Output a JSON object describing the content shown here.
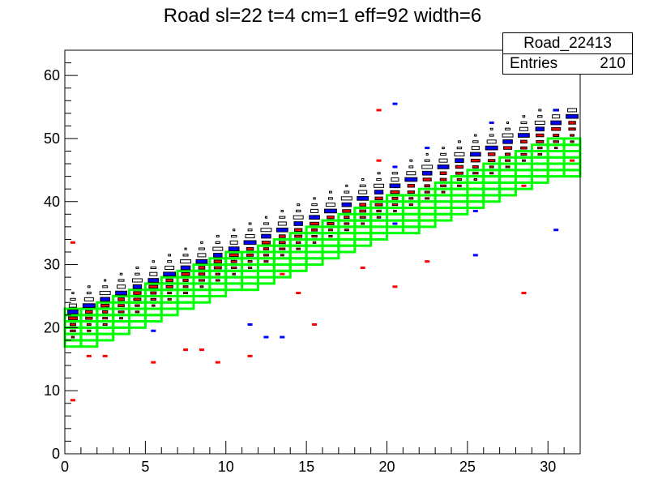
{
  "chart_data": {
    "type": "heatmap",
    "title": "Road sl=22 t=4 cm=1 eff=92 width=6",
    "xlabel": "",
    "ylabel": "",
    "xlim": [
      0,
      32
    ],
    "ylim": [
      0,
      64
    ],
    "x_ticks": [
      "0",
      "5",
      "10",
      "15",
      "20",
      "25",
      "30"
    ],
    "y_ticks": [
      "0",
      "10",
      "20",
      "30",
      "40",
      "50",
      "60"
    ],
    "stats_box": {
      "name": "Road_22413",
      "entries_label": "Entries",
      "entries_value": "210"
    },
    "road": {
      "x_bins": 32,
      "lower_edge_start": 17,
      "slope_per_bin": 0.9,
      "width_bins": 6,
      "color": "#00ff00"
    },
    "series": [
      {
        "name": "",
        "color": "#000000",
        "style": "box"
      },
      {
        "name": "",
        "color": "#0000ff",
        "style": "box"
      },
      {
        "name": "",
        "color": "#ff0000",
        "style": "box"
      }
    ],
    "red_points": [
      [
        0.5,
        8.5
      ],
      [
        0.5,
        33.5
      ],
      [
        1.5,
        15.5
      ],
      [
        2.5,
        15.5
      ],
      [
        5.5,
        14.5
      ],
      [
        7.5,
        16.5
      ],
      [
        8.5,
        16.5
      ],
      [
        9.5,
        14.5
      ],
      [
        11.5,
        15.5
      ],
      [
        13.5,
        28.5
      ],
      [
        14.5,
        25.5
      ],
      [
        15.5,
        20.5
      ],
      [
        18.5,
        29.5
      ],
      [
        19.5,
        54.5
      ],
      [
        19.5,
        46.5
      ],
      [
        20.5,
        26.5
      ],
      [
        22.5,
        30.5
      ],
      [
        28.5,
        25.5
      ],
      [
        28.5,
        42.5
      ],
      [
        31.5,
        46.5
      ]
    ],
    "blue_points": [
      [
        5.5,
        19.5
      ],
      [
        11.5,
        20.5
      ],
      [
        12.5,
        18.5
      ],
      [
        13.5,
        18.5
      ],
      [
        20.5,
        55.5
      ],
      [
        20.5,
        45.5
      ],
      [
        20.5,
        36.5
      ],
      [
        22.5,
        48.5
      ],
      [
        25.5,
        38.5
      ],
      [
        25.5,
        31.5
      ],
      [
        26.5,
        52.5
      ],
      [
        30.5,
        54.5
      ],
      [
        30.5,
        35.5
      ]
    ]
  }
}
